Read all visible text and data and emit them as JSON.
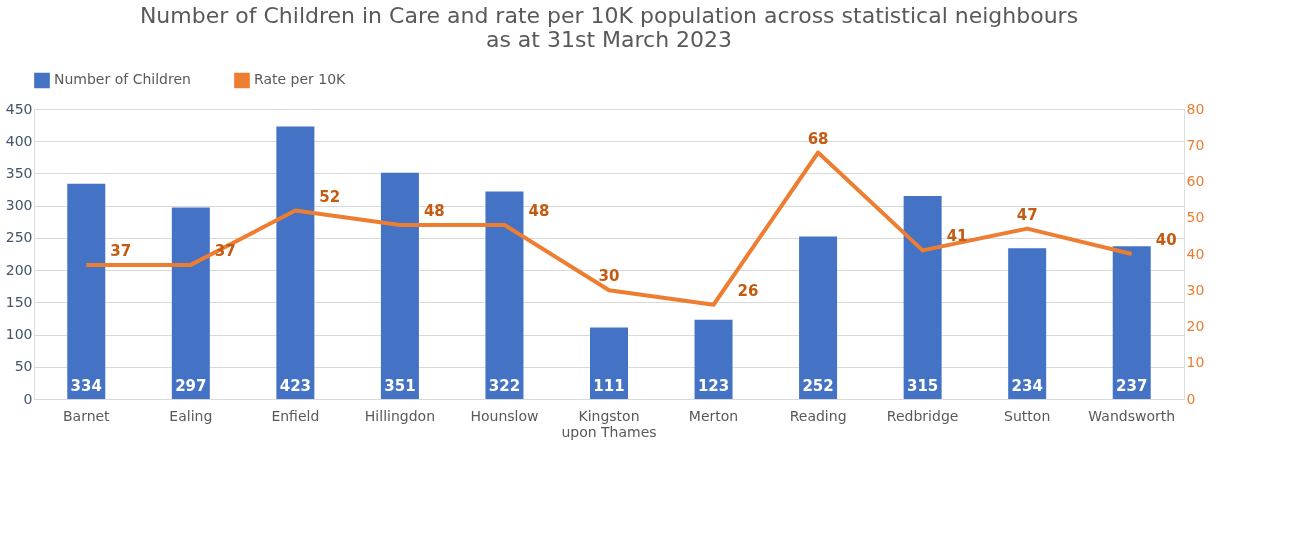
{
  "chart_data": {
    "type": "bar",
    "title": [
      "Number of Children in Care and rate per 10K population across statistical neighbours",
      "as at 31st March 2023"
    ],
    "categories": [
      "Barnet",
      "Ealing",
      "Enfield",
      "Hillingdon",
      "Hounslow",
      "Kingston upon Thames",
      "Merton",
      "Reading",
      "Redbridge",
      "Sutton",
      "Wandsworth"
    ],
    "series": [
      {
        "name": "Number of Children",
        "color": "#4472c4",
        "values": [
          334,
          297,
          423,
          351,
          322,
          111,
          123,
          252,
          315,
          234,
          237
        ]
      },
      {
        "name": "Rate per 10K",
        "type": "line",
        "axis": "y2",
        "color": "#ed7d31",
        "values": [
          37,
          37,
          52,
          48,
          48,
          30,
          26,
          68,
          41,
          47,
          40
        ]
      }
    ],
    "ylim": [
      0,
      450
    ],
    "yticks": [
      0,
      50,
      100,
      150,
      200,
      250,
      300,
      350,
      400,
      450
    ],
    "y2lim": [
      0,
      80
    ],
    "y2ticks": [
      0,
      10,
      20,
      30,
      40,
      50,
      60,
      70,
      80
    ],
    "grid": "y",
    "legend": "top",
    "data_labels": true,
    "marker": "none",
    "line_style": "solid"
  }
}
